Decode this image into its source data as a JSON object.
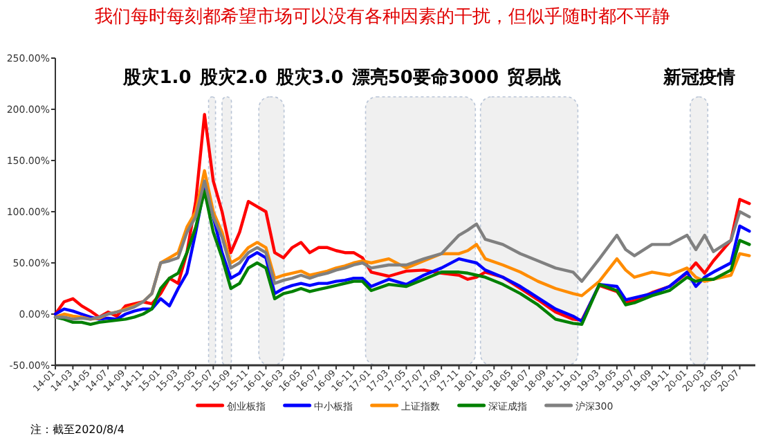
{
  "chart_data": {
    "type": "line",
    "title": "我们每时每刻都希望市场可以没有各种因素的干扰，但似乎随时都不平静",
    "x": [
      "2014-01",
      "2014-02",
      "2014-03",
      "2014-04",
      "2014-05",
      "2014-06",
      "2014-07",
      "2014-08",
      "2014-09",
      "2014-10",
      "2014-11",
      "2014-12",
      "2015-01",
      "2015-02",
      "2015-03",
      "2015-04",
      "2015-05",
      "2015-06",
      "2015-07",
      "2015-08",
      "2015-09",
      "2015-10",
      "2015-11",
      "2015-12",
      "2016-01",
      "2016-02",
      "2016-03",
      "2016-04",
      "2016-05",
      "2016-06",
      "2016-07",
      "2016-08",
      "2016-09",
      "2016-10",
      "2016-11",
      "2016-12",
      "2017-01",
      "2017-03",
      "2017-05",
      "2017-07",
      "2017-09",
      "2017-11",
      "2017-12",
      "2018-01",
      "2018-02",
      "2018-04",
      "2018-06",
      "2018-08",
      "2018-10",
      "2018-12",
      "2019-01",
      "2019-03",
      "2019-05",
      "2019-06",
      "2019-07",
      "2019-09",
      "2019-11",
      "2020-01",
      "2020-02",
      "2020-03",
      "2020-04",
      "2020-06",
      "2020-07",
      "2020-08-04"
    ],
    "series": [
      {
        "name": "创业板指",
        "color": "#ff0000",
        "values": [
          0,
          12,
          15,
          8,
          3,
          -3,
          2,
          -2,
          8,
          10,
          12,
          10,
          20,
          35,
          30,
          60,
          110,
          195,
          130,
          100,
          60,
          80,
          110,
          105,
          100,
          60,
          55,
          65,
          70,
          60,
          65,
          65,
          62,
          60,
          60,
          55,
          41,
          37,
          42,
          43,
          40,
          38,
          34,
          36,
          41,
          36,
          25,
          14,
          2,
          -5,
          -6,
          28,
          22,
          11,
          13,
          21,
          27,
          40,
          50,
          40,
          52,
          72,
          112,
          108
        ]
      },
      {
        "name": "中小板指",
        "color": "#0000ff",
        "values": [
          0,
          5,
          3,
          0,
          -3,
          -5,
          -4,
          -5,
          0,
          3,
          5,
          5,
          15,
          8,
          25,
          40,
          80,
          125,
          95,
          60,
          35,
          40,
          55,
          60,
          55,
          20,
          25,
          28,
          30,
          28,
          30,
          30,
          32,
          33,
          35,
          35,
          27,
          34,
          29,
          38,
          45,
          54,
          52,
          50,
          43,
          36,
          27,
          16,
          5,
          -2,
          -7,
          29,
          27,
          14,
          16,
          20,
          27,
          41,
          27,
          36,
          41,
          50,
          86,
          81
        ]
      },
      {
        "name": "上证指数",
        "color": "#ff8c00",
        "values": [
          -3,
          0,
          -2,
          -3,
          -5,
          -4,
          0,
          2,
          5,
          8,
          12,
          20,
          50,
          55,
          60,
          85,
          100,
          140,
          100,
          80,
          50,
          55,
          65,
          70,
          65,
          35,
          38,
          40,
          42,
          38,
          40,
          42,
          45,
          47,
          50,
          52,
          50,
          54,
          45,
          52,
          59,
          59,
          62,
          68,
          54,
          48,
          41,
          32,
          25,
          20,
          18,
          32,
          54,
          43,
          36,
          41,
          38,
          45,
          36,
          32,
          34,
          38,
          59,
          57
        ]
      },
      {
        "name": "深证成指",
        "color": "#008000",
        "values": [
          -3,
          -5,
          -8,
          -8,
          -10,
          -8,
          -7,
          -6,
          -5,
          -3,
          0,
          5,
          25,
          35,
          40,
          60,
          85,
          120,
          80,
          55,
          25,
          30,
          45,
          50,
          45,
          15,
          20,
          22,
          25,
          22,
          24,
          26,
          28,
          30,
          32,
          32,
          23,
          29,
          27,
          34,
          41,
          41,
          40,
          38,
          36,
          29,
          20,
          9,
          -5,
          -9,
          -10,
          29,
          23,
          9,
          11,
          18,
          23,
          36,
          32,
          34,
          34,
          43,
          72,
          68
        ]
      },
      {
        "name": "沪深300",
        "color": "#808080",
        "values": [
          -3,
          -3,
          -5,
          -4,
          -5,
          -3,
          0,
          2,
          4,
          7,
          12,
          20,
          50,
          52,
          55,
          80,
          95,
          130,
          95,
          75,
          45,
          50,
          60,
          65,
          60,
          30,
          33,
          35,
          38,
          35,
          38,
          40,
          43,
          45,
          48,
          50,
          45,
          48,
          48,
          54,
          59,
          77,
          82,
          88,
          73,
          68,
          59,
          52,
          45,
          41,
          32,
          54,
          77,
          63,
          57,
          68,
          68,
          77,
          63,
          77,
          61,
          72,
          100,
          95
        ]
      }
    ],
    "xlim": [
      "2014-01",
      "2020-08-25"
    ],
    "xticks": [
      {
        "value": "2014-01",
        "label": "14-01"
      },
      {
        "value": "2014-03",
        "label": "14-03"
      },
      {
        "value": "2014-05",
        "label": "14-05"
      },
      {
        "value": "2014-07",
        "label": "14-07"
      },
      {
        "value": "2014-09",
        "label": "14-09"
      },
      {
        "value": "2014-11",
        "label": "14-11"
      },
      {
        "value": "2015-01",
        "label": "15-01"
      },
      {
        "value": "2015-03",
        "label": "15-03"
      },
      {
        "value": "2015-05",
        "label": "15-05"
      },
      {
        "value": "2015-07",
        "label": "15-07"
      },
      {
        "value": "2015-09",
        "label": "15-09"
      },
      {
        "value": "2015-11",
        "label": "15-11"
      },
      {
        "value": "2016-01",
        "label": "16-01"
      },
      {
        "value": "2016-03",
        "label": "16-03"
      },
      {
        "value": "2016-05",
        "label": "16-05"
      },
      {
        "value": "2016-07",
        "label": "16-07"
      },
      {
        "value": "2016-09",
        "label": "16-09"
      },
      {
        "value": "2016-11",
        "label": "16-11"
      },
      {
        "value": "2017-01",
        "label": "17-01"
      },
      {
        "value": "2017-03",
        "label": "17-03"
      },
      {
        "value": "2017-05",
        "label": "17-05"
      },
      {
        "value": "2017-07",
        "label": "17-07"
      },
      {
        "value": "2017-09",
        "label": "17-09"
      },
      {
        "value": "2017-11",
        "label": "17-11"
      },
      {
        "value": "2018-01",
        "label": "18-01"
      },
      {
        "value": "2018-03",
        "label": "18-03"
      },
      {
        "value": "2018-05",
        "label": "18-05"
      },
      {
        "value": "2018-07",
        "label": "18-07"
      },
      {
        "value": "2018-09",
        "label": "18-09"
      },
      {
        "value": "2018-11",
        "label": "18-11"
      },
      {
        "value": "2019-01",
        "label": "19-01"
      },
      {
        "value": "2019-03",
        "label": "19-03"
      },
      {
        "value": "2019-05",
        "label": "19-05"
      },
      {
        "value": "2019-07",
        "label": "19-07"
      },
      {
        "value": "2019-09",
        "label": "19-09"
      },
      {
        "value": "2019-11",
        "label": "19-11"
      },
      {
        "value": "2020-01",
        "label": "20-01"
      },
      {
        "value": "2020-03",
        "label": "20-03"
      },
      {
        "value": "2020-05",
        "label": "20-05"
      },
      {
        "value": "2020-07",
        "label": "20-07"
      }
    ],
    "ylim": [
      -50,
      250
    ],
    "yticks": [
      {
        "value": -50,
        "label": "-50.00%"
      },
      {
        "value": 0,
        "label": "0.00%"
      },
      {
        "value": 50,
        "label": "50.00%"
      },
      {
        "value": 100,
        "label": "100.00%"
      },
      {
        "value": 150,
        "label": "150.00%"
      },
      {
        "value": 200,
        "label": "200.00%"
      },
      {
        "value": 250,
        "label": "250.00%"
      }
    ],
    "bands": [
      {
        "axis": "x",
        "from": "2015-06-15",
        "to": "2015-07-09",
        "label": "股灾1.0",
        "color": "#f0f0f0"
      },
      {
        "axis": "x",
        "from": "2015-08-01",
        "to": "2015-09-03",
        "label": "股灾2.0",
        "color": "#f0f0f0"
      },
      {
        "axis": "x",
        "from": "2015-12-07",
        "to": "2016-03-03",
        "label": "股灾3.0",
        "color": "#f0f0f0"
      },
      {
        "axis": "x",
        "from": "2016-12-12",
        "to": "2017-12-28",
        "label": "漂亮50要命3000",
        "color": "#f0f0f0"
      },
      {
        "axis": "x",
        "from": "2018-01-15",
        "to": "2018-12-18",
        "label": "贸易战",
        "color": "#f0f0f0"
      },
      {
        "axis": "x",
        "from": "2020-01-12",
        "to": "2020-03-12",
        "label": "新冠疫情",
        "color": "#f0f0f0"
      }
    ],
    "legend": "bottom",
    "annotations": [
      "注：截至2020/8/4"
    ]
  }
}
